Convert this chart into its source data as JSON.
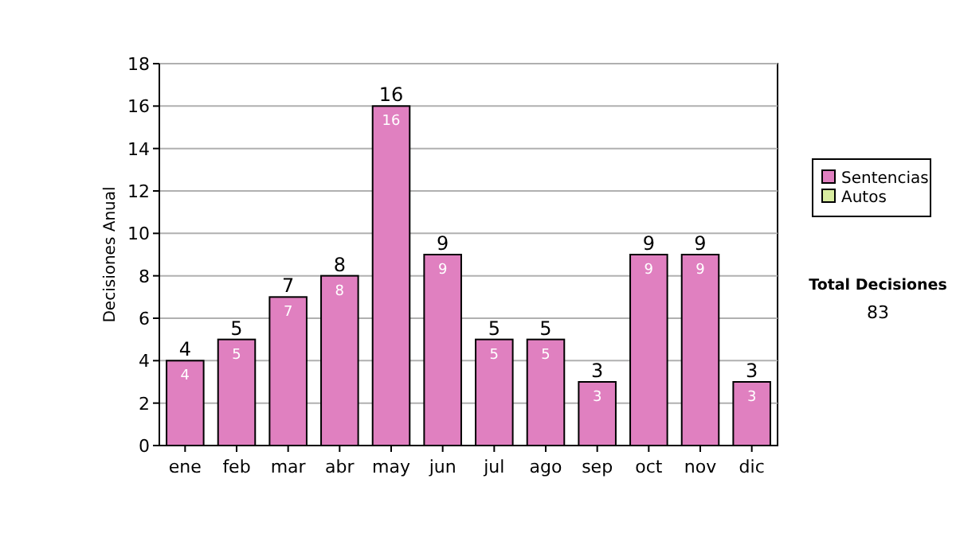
{
  "chart_data": {
    "type": "bar",
    "ylabel": "Decisiones Anual",
    "categories": [
      "ene",
      "feb",
      "mar",
      "abr",
      "may",
      "jun",
      "jul",
      "ago",
      "sep",
      "oct",
      "nov",
      "dic"
    ],
    "series": [
      {
        "name": "Sentencias",
        "color": "#e080c0",
        "values": [
          4,
          5,
          7,
          8,
          16,
          9,
          5,
          5,
          3,
          9,
          9,
          3
        ],
        "value_labels": [
          "4",
          "5",
          "7",
          "8",
          "16",
          "9",
          "5",
          "5",
          "3",
          "9",
          "9",
          "3"
        ]
      },
      {
        "name": "Autos",
        "color": "#d8eca0",
        "values": [
          0,
          0,
          0,
          0,
          0,
          0,
          0,
          0,
          0,
          0,
          0,
          0
        ]
      }
    ],
    "stacked": true,
    "totals": [
      "4",
      "5",
      "7",
      "8",
      "16",
      "9",
      "5",
      "5",
      "3",
      "9",
      "9",
      "3"
    ],
    "ylim": [
      0,
      18
    ],
    "yticks": [
      0,
      2,
      4,
      6,
      8,
      10,
      12,
      14,
      16,
      18
    ],
    "grid": "y",
    "legend": "right",
    "annotations": [
      "Total Decisiones",
      "83"
    ]
  }
}
